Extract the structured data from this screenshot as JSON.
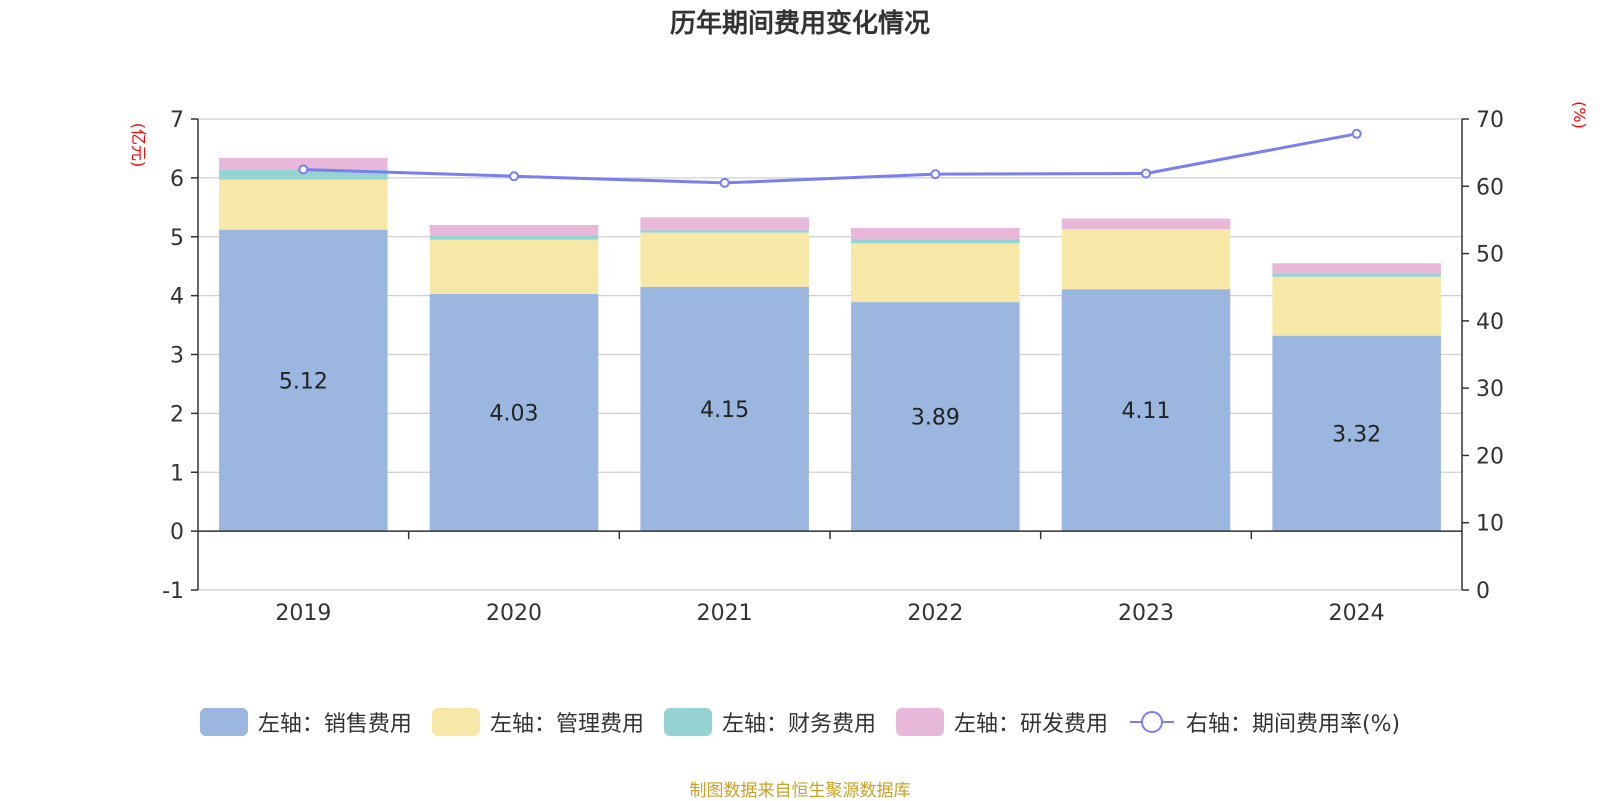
{
  "chart_data": {
    "type": "bar",
    "stacked": true,
    "title": "历年期间费用变化情况",
    "categories": [
      "2019",
      "2020",
      "2021",
      "2022",
      "2023",
      "2024"
    ],
    "left_axis": {
      "unit_label": "(亿元)",
      "min": -1,
      "max": 7,
      "ticks": [
        "-1",
        "0",
        "1",
        "2",
        "3",
        "4",
        "5",
        "6",
        "7"
      ]
    },
    "right_axis": {
      "unit_label": "(%)",
      "min": 0,
      "max": 70,
      "ticks": [
        "0",
        "10",
        "20",
        "30",
        "40",
        "50",
        "60",
        "70"
      ]
    },
    "grid": true,
    "legend_position": "bottom",
    "series": [
      {
        "name": "左轴：销售费用",
        "axis": "left",
        "color": "#9bb7e0",
        "values": [
          5.12,
          4.03,
          4.15,
          3.89,
          4.11,
          3.32
        ],
        "labels": [
          "5.12",
          "4.03",
          "4.15",
          "3.89",
          "4.11",
          "3.32"
        ]
      },
      {
        "name": "左轴：管理费用",
        "axis": "left",
        "color": "#f7e8a8",
        "values": [
          0.85,
          0.92,
          0.92,
          1.0,
          1.02,
          1.0
        ]
      },
      {
        "name": "左轴：财务费用",
        "axis": "left",
        "color": "#96d3d3",
        "values": [
          0.17,
          0.07,
          0.04,
          0.07,
          0.0,
          0.06
        ]
      },
      {
        "name": "左轴：研发费用",
        "axis": "left",
        "color": "#e7b8da",
        "values": [
          0.2,
          0.18,
          0.22,
          0.19,
          0.18,
          0.17
        ]
      },
      {
        "name": "右轴：期间费用率(%)",
        "axis": "right",
        "type": "line",
        "color": "#7b7fee",
        "values": [
          62.5,
          61.5,
          60.5,
          61.8,
          61.9,
          67.8
        ]
      }
    ],
    "source": "制图数据来自恒生聚源数据库"
  }
}
